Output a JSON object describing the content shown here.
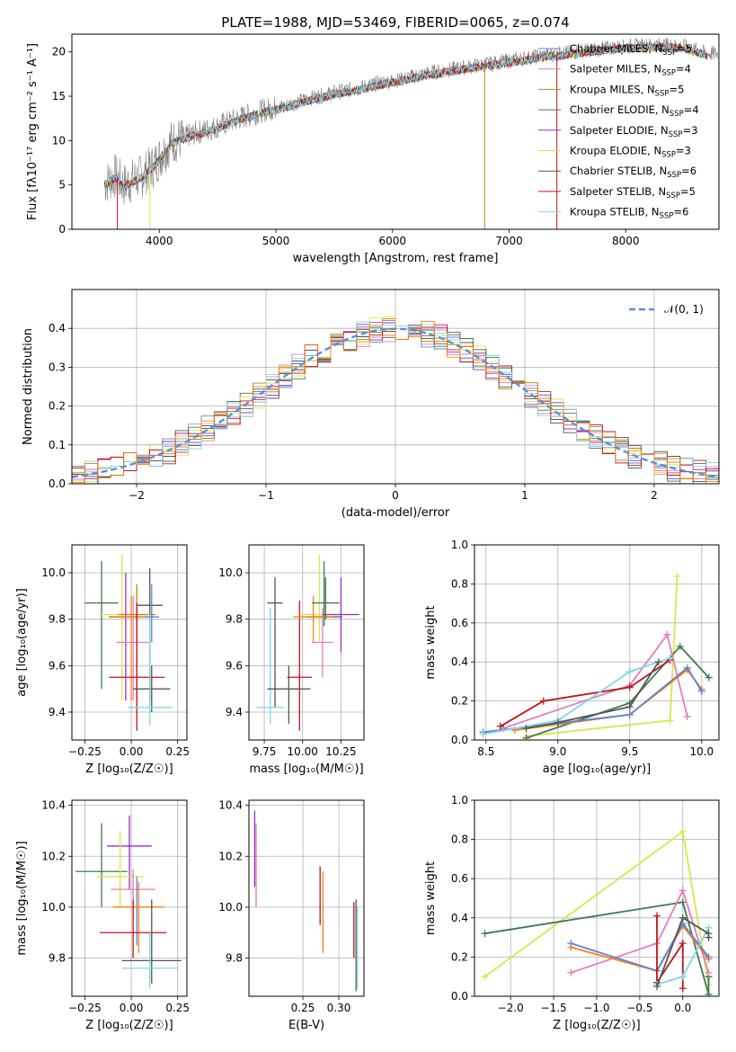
{
  "colors": {
    "chabrier_miles": "#5b84d4",
    "salpeter_miles": "#e07fbf",
    "kroupa_miles": "#b8860b",
    "chabrier_elodie": "#3f7a4f",
    "salpeter_elodie": "#9a2fbf",
    "kroupa_elodie": "#d8e64a",
    "chabrier_stelib": "#555555",
    "salpeter_stelib": "#c0141c",
    "kroupa_stelib": "#7fd8e6",
    "orange": "#ff7f0e",
    "grey": "#7f7f7f",
    "normal_curve": "#5b8fd6"
  },
  "chart_data": [
    {
      "id": "spectrum",
      "type": "line",
      "title": "PLATE=1988, MJD=53469, FIBERID=0065, z=0.074",
      "xlabel": "wavelength [Angstrom, rest frame]",
      "ylabel": "Flux [fλ10⁻¹⁷ erg cm⁻² s⁻¹ A⁻¹]",
      "xlim": [
        3250,
        8800
      ],
      "ylim": [
        0,
        22
      ],
      "xticks": [
        "4000",
        "5000",
        "6000",
        "7000",
        "8000"
      ],
      "yticks": [
        "0",
        "5",
        "10",
        "15",
        "20"
      ],
      "legend_position": "right",
      "legend": [
        {
          "name": "Chabrier MILES, N",
          "sub": "SSP",
          "tail": "=5"
        },
        {
          "name": "Salpeter MILES, N",
          "sub": "SSP",
          "tail": "=4"
        },
        {
          "name": "Kroupa MILES, N",
          "sub": "SSP",
          "tail": "=5"
        },
        {
          "name": "Chabrier ELODIE, N",
          "sub": "SSP",
          "tail": "=4"
        },
        {
          "name": "Salpeter ELODIE, N",
          "sub": "SSP",
          "tail": "=3"
        },
        {
          "name": "Kroupa ELODIE, N",
          "sub": "SSP",
          "tail": "=3"
        },
        {
          "name": "Chabrier STELIB, N",
          "sub": "SSP",
          "tail": "=6"
        },
        {
          "name": "Salpeter STELIB, N",
          "sub": "SSP",
          "tail": "=5"
        },
        {
          "name": "Kroupa STELIB, N",
          "sub": "SSP",
          "tail": "=6"
        }
      ],
      "continuum": {
        "x": [
          3530,
          3620,
          3700,
          3780,
          3850,
          3950,
          4100,
          4300,
          4500,
          4700,
          4900,
          5100,
          5300,
          5500,
          5700,
          5900,
          6100,
          6300,
          6500,
          6700,
          6900,
          7100,
          7300,
          7500,
          7700,
          7900,
          8100,
          8300,
          8500,
          8700
        ],
        "y": [
          5.2,
          6.0,
          5.0,
          5.6,
          6.0,
          7.2,
          9.8,
          10.8,
          11.6,
          12.6,
          13.4,
          14.0,
          14.8,
          15.4,
          15.9,
          16.5,
          17.0,
          17.6,
          18.0,
          18.4,
          18.8,
          19.2,
          19.6,
          19.9,
          20.2,
          20.5,
          20.7,
          20.8,
          20.6,
          19.8
        ]
      }
    },
    {
      "id": "residuals",
      "type": "step",
      "xlabel": "(data-model)/error",
      "ylabel": "Normed distribution",
      "xlim": [
        -2.5,
        2.5
      ],
      "ylim": [
        0,
        0.5
      ],
      "xticks": [
        "−2",
        "−1",
        "0",
        "1",
        "2"
      ],
      "yticks": [
        "0.0",
        "0.1",
        "0.2",
        "0.3",
        "0.4"
      ],
      "legend_label": "𝒩(0, 1)",
      "legend_position": "top-right",
      "bin_width": 0.1
    },
    {
      "id": "age_vs_Z",
      "type": "scatter",
      "xlabel": "Z [log₁₀(Z/Z☉)]",
      "ylabel": "age  [log₁₀(age/yr)]",
      "xlim": [
        -0.32,
        0.3
      ],
      "ylim": [
        9.28,
        10.12
      ],
      "xticks": [
        "−0.25",
        "0.00",
        "0.25"
      ],
      "yticks": [
        "9.4",
        "9.6",
        "9.8",
        "10.0"
      ]
    },
    {
      "id": "age_vs_mass",
      "type": "scatter",
      "xlabel": "mass [log₁₀(M/M☉)]",
      "xlim": [
        9.65,
        10.4
      ],
      "ylim": [
        9.28,
        10.12
      ],
      "xticks": [
        "9.75",
        "10.00",
        "10.25"
      ],
      "yticks": [
        "9.4",
        "9.6",
        "9.8",
        "10.0"
      ]
    },
    {
      "id": "mass_weight_vs_age",
      "type": "line",
      "xlabel": "age  [log₁₀(age/yr)]",
      "ylabel": "mass weight",
      "xlim": [
        8.42,
        10.12
      ],
      "ylim": [
        0,
        1
      ],
      "xticks": [
        "8.5",
        "9.0",
        "9.5",
        "10.0"
      ],
      "yticks": [
        "0.0",
        "0.2",
        "0.4",
        "0.6",
        "0.8",
        "1.0"
      ]
    },
    {
      "id": "mass_vs_Z",
      "type": "scatter",
      "xlabel": "Z [log₁₀(Z/Z☉)]",
      "ylabel": "mass [log₁₀(M/M☉)]",
      "xlim": [
        -0.32,
        0.3
      ],
      "ylim": [
        9.65,
        10.42
      ],
      "xticks": [
        "−0.25",
        "0.00",
        "0.25"
      ],
      "yticks": [
        "9.8",
        "10.0",
        "10.2",
        "10.4"
      ]
    },
    {
      "id": "mass_vs_ebv",
      "type": "scatter",
      "xlabel": "E(B-V)",
      "xlim": [
        0.175,
        0.335
      ],
      "ylim": [
        9.65,
        10.42
      ],
      "xticks": [
        "0.25",
        "0.30"
      ],
      "yticks": [
        "9.8",
        "10.0",
        "10.2",
        "10.4"
      ]
    },
    {
      "id": "mass_weight_vs_Z",
      "type": "line",
      "xlabel": "Z [log₁₀(Z/Z☉)]",
      "ylabel": "mass weight",
      "xlim": [
        -2.42,
        0.42
      ],
      "ylim": [
        0,
        1
      ],
      "xticks": [
        "−2.0",
        "−1.5",
        "−1.0",
        "−0.5",
        "0.0"
      ],
      "yticks": [
        "0.0",
        "0.2",
        "0.4",
        "0.6",
        "0.8",
        "1.0"
      ]
    }
  ],
  "points": {
    "age_vs_Z": [
      {
        "c": "chabrier_elodie",
        "x": -0.16,
        "y": 9.87,
        "xe": 0.09,
        "ylo": 9.5,
        "yhi": 10.05
      },
      {
        "c": "kroupa_elodie",
        "x": -0.05,
        "y": 9.82,
        "xe": 0.12,
        "ylo": 9.45,
        "yhi": 10.08
      },
      {
        "c": "salpeter_elodie",
        "x": -0.03,
        "y": 9.81,
        "xe": 0.09,
        "ylo": 9.45,
        "yhi": 10.0
      },
      {
        "c": "chabrier_stelib",
        "x": 0.1,
        "y": 9.86,
        "xe": 0.07,
        "ylo": 9.45,
        "yhi": 10.02
      },
      {
        "c": "orange",
        "x": 0.0,
        "y": 9.81,
        "xe": 0.12,
        "ylo": 9.45,
        "yhi": 9.9
      },
      {
        "c": "kroupa_miles",
        "x": 0.03,
        "y": 9.82,
        "xe": 0.1,
        "ylo": 9.45,
        "yhi": 9.95
      },
      {
        "c": "salpeter_miles",
        "x": 0.01,
        "y": 9.7,
        "xe": 0.09,
        "ylo": 9.45,
        "yhi": 9.9
      },
      {
        "c": "salpeter_stelib",
        "x": 0.03,
        "y": 9.55,
        "xe": 0.15,
        "ylo": 9.32,
        "yhi": 9.87
      },
      {
        "c": "chabrier_stelib",
        "x": 0.11,
        "y": 9.5,
        "xe": 0.1,
        "ylo": 9.4,
        "yhi": 9.6
      },
      {
        "c": "kroupa_stelib",
        "x": 0.1,
        "y": 9.42,
        "xe": 0.12,
        "ylo": 9.34,
        "yhi": 9.82
      },
      {
        "c": "chabrier_miles",
        "x": 0.11,
        "y": 9.81,
        "xe": 0.04,
        "ylo": 9.7,
        "yhi": 9.95
      }
    ],
    "age_vs_mass": [
      {
        "c": "chabrier_stelib",
        "x": 9.82,
        "y": 9.87,
        "xe": 0.05,
        "ylo": 9.42,
        "yhi": 9.98
      },
      {
        "c": "kroupa_stelib",
        "x": 9.79,
        "y": 9.42,
        "xe": 0.09,
        "ylo": 9.35,
        "yhi": 9.85
      },
      {
        "c": "chabrier_stelib",
        "x": 9.91,
        "y": 9.5,
        "xe": 0.14,
        "ylo": 9.35,
        "yhi": 9.6
      },
      {
        "c": "salpeter_stelib",
        "x": 9.98,
        "y": 9.55,
        "xe": 0.08,
        "ylo": 9.32,
        "yhi": 9.88
      },
      {
        "c": "salpeter_miles",
        "x": 10.13,
        "y": 9.7,
        "xe": 0.07,
        "ylo": 9.55,
        "yhi": 9.85
      },
      {
        "c": "kroupa_elodie",
        "x": 10.11,
        "y": 9.82,
        "xe": 0.13,
        "ylo": 9.7,
        "yhi": 10.08
      },
      {
        "c": "chabrier_elodie",
        "x": 10.14,
        "y": 9.81,
        "xe": 0.12,
        "ylo": 9.77,
        "yhi": 10.05
      },
      {
        "c": "salpeter_elodie",
        "x": 10.25,
        "y": 9.82,
        "xe": 0.12,
        "ylo": 9.66,
        "yhi": 9.98
      },
      {
        "c": "orange",
        "x": 10.07,
        "y": 9.81,
        "xe": 0.13,
        "ylo": 9.7,
        "yhi": 9.9
      },
      {
        "c": "chabrier_elodie",
        "x": 10.15,
        "y": 9.87,
        "xe": 0.09,
        "ylo": 9.8,
        "yhi": 9.98
      }
    ],
    "mass_vs_Z": [
      {
        "c": "chabrier_elodie",
        "x": -0.16,
        "y": 10.14,
        "xe": 0.14,
        "ylo": 10.0,
        "yhi": 10.33
      },
      {
        "c": "salpeter_elodie",
        "x": -0.01,
        "y": 10.24,
        "xe": 0.12,
        "ylo": 10.07,
        "yhi": 10.36
      },
      {
        "c": "kroupa_elodie",
        "x": -0.06,
        "y": 10.12,
        "xe": 0.13,
        "ylo": 10.0,
        "yhi": 10.3
      },
      {
        "c": "salpeter_miles",
        "x": 0.01,
        "y": 10.07,
        "xe": 0.12,
        "ylo": 9.95,
        "yhi": 10.15
      },
      {
        "c": "chabrier_miles",
        "x": 0.03,
        "y": 10.0,
        "xe": 0.12,
        "ylo": 9.85,
        "yhi": 10.12
      },
      {
        "c": "orange",
        "x": 0.04,
        "y": 10.0,
        "xe": 0.14,
        "ylo": 9.82,
        "yhi": 10.1
      },
      {
        "c": "salpeter_stelib",
        "x": 0.01,
        "y": 9.9,
        "xe": 0.18,
        "ylo": 9.8,
        "yhi": 10.03
      },
      {
        "c": "chabrier_stelib",
        "x": 0.11,
        "y": 9.79,
        "xe": 0.16,
        "ylo": 9.7,
        "yhi": 10.03
      },
      {
        "c": "kroupa_stelib",
        "x": 0.1,
        "y": 9.76,
        "xe": 0.15,
        "ylo": 9.68,
        "yhi": 9.9
      }
    ],
    "mass_vs_ebv": [
      {
        "c": "salpeter_elodie",
        "x": 0.183,
        "y": 10.24,
        "ylo": 10.08,
        "yhi": 10.38
      },
      {
        "c": "kroupa_elodie",
        "x": 0.185,
        "y": 10.14,
        "ylo": 10.0,
        "yhi": 10.3
      },
      {
        "c": "salpeter_miles",
        "x": 0.185,
        "y": 10.12,
        "ylo": 10.0,
        "yhi": 10.33
      },
      {
        "c": "salpeter_stelib",
        "x": 0.274,
        "y": 10.06,
        "ylo": 9.93,
        "yhi": 10.16
      },
      {
        "c": "orange",
        "x": 0.278,
        "y": 10.0,
        "ylo": 9.82,
        "yhi": 10.14
      },
      {
        "c": "salpeter_stelib",
        "x": 0.321,
        "y": 9.9,
        "ylo": 9.8,
        "yhi": 10.02
      },
      {
        "c": "chabrier_stelib",
        "x": 0.324,
        "y": 9.85,
        "ylo": 9.67,
        "yhi": 10.03
      },
      {
        "c": "kroupa_stelib",
        "x": 0.326,
        "y": 9.78,
        "ylo": 9.68,
        "yhi": 10.0
      }
    ],
    "weight_vs_age": [
      {
        "c": "kroupa_elodie",
        "x": [
          8.78,
          9.78,
          9.83,
          9.78
        ],
        "y": [
          0.02,
          0.1,
          0.84,
          0.1
        ]
      },
      {
        "c": "chabrier_elodie",
        "x": [
          8.78,
          9.5,
          9.85,
          10.05
        ],
        "y": [
          0.01,
          0.19,
          0.48,
          0.32
        ]
      },
      {
        "c": "salpeter_miles",
        "x": [
          8.62,
          9.5,
          9.76,
          9.9
        ],
        "y": [
          0.06,
          0.28,
          0.54,
          0.12
        ]
      },
      {
        "c": "orange",
        "x": [
          8.7,
          9.5,
          9.9,
          10.0
        ],
        "y": [
          0.05,
          0.13,
          0.36,
          0.26
        ]
      },
      {
        "c": "chabrier_miles",
        "x": [
          8.48,
          9.5,
          9.9,
          10.0
        ],
        "y": [
          0.04,
          0.13,
          0.37,
          0.25
        ]
      },
      {
        "c": "salpeter_stelib",
        "x": [
          8.6,
          8.9,
          9.5,
          9.78
        ],
        "y": [
          0.07,
          0.2,
          0.27,
          0.41
        ]
      },
      {
        "c": "kroupa_stelib",
        "x": [
          8.48,
          9.0,
          9.5,
          9.78
        ],
        "y": [
          0.03,
          0.1,
          0.35,
          0.42
        ]
      },
      {
        "c": "chabrier_stelib",
        "x": [
          8.78,
          9.0,
          9.5,
          9.7
        ],
        "y": [
          0.06,
          0.09,
          0.17,
          0.4
        ]
      }
    ],
    "weight_vs_Z": [
      {
        "c": "kroupa_elodie",
        "x": [
          -2.3,
          0.0,
          0.3,
          0.3
        ],
        "y": [
          0.1,
          0.84,
          0.06,
          0.1
        ]
      },
      {
        "c": "chabrier_elodie",
        "x": [
          -2.3,
          0.0,
          0.3,
          0.3
        ],
        "y": [
          0.32,
          0.48,
          0.01,
          0.1
        ]
      },
      {
        "c": "salpeter_miles",
        "x": [
          -1.3,
          -0.3,
          0.0,
          0.3
        ],
        "y": [
          0.12,
          0.27,
          0.54,
          0.12
        ]
      },
      {
        "c": "orange",
        "x": [
          -1.3,
          -0.3,
          0.0,
          0.3
        ],
        "y": [
          0.25,
          0.13,
          0.36,
          0.19
        ]
      },
      {
        "c": "chabrier_miles",
        "x": [
          -1.3,
          -0.3,
          0.0,
          0.3
        ],
        "y": [
          0.27,
          0.13,
          0.37,
          0.2
        ]
      },
      {
        "c": "salpeter_stelib",
        "x": [
          -0.3,
          -0.3,
          0.0,
          0.0
        ],
        "y": [
          0.41,
          0.07,
          0.27,
          0.04
        ]
      },
      {
        "c": "kroupa_stelib",
        "x": [
          -0.3,
          0.0,
          0.3,
          0.3
        ],
        "y": [
          0.06,
          0.1,
          0.35,
          0.3
        ]
      },
      {
        "c": "chabrier_stelib",
        "x": [
          -0.3,
          0.0,
          0.3,
          0.3
        ],
        "y": [
          0.05,
          0.4,
          0.32,
          0.3
        ]
      }
    ]
  }
}
